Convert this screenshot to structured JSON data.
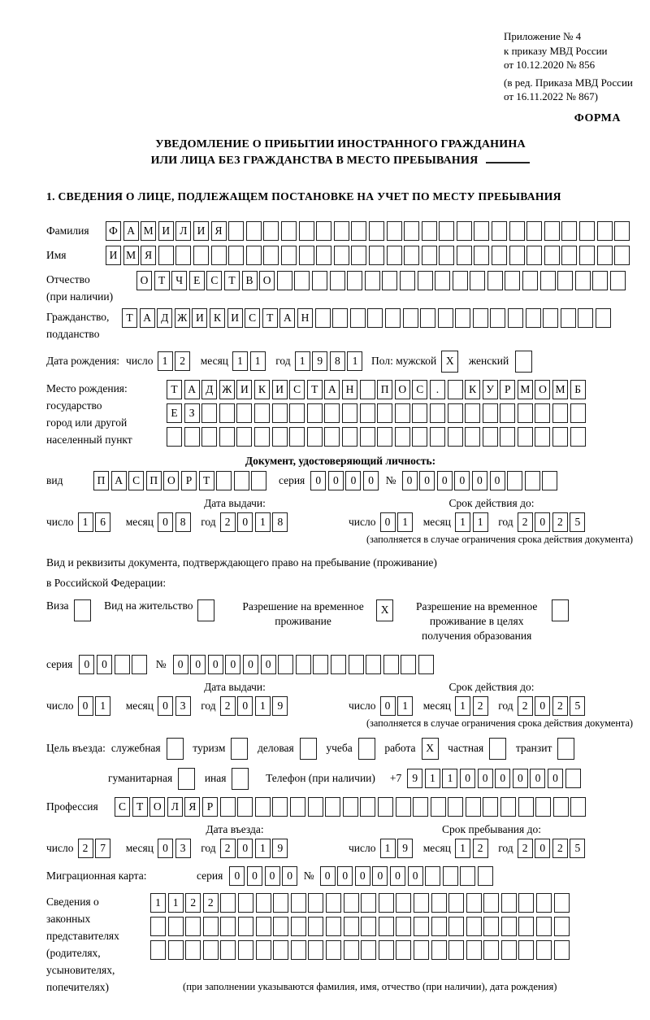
{
  "page": {
    "header_lines": [
      "Приложение № 4",
      "к приказу МВД России",
      "от 10.12.2020 № 856",
      "(в ред. Приказа МВД России",
      "от 16.11.2022 № 867)"
    ],
    "forma": "ФОРМА",
    "title_line1": "УВЕДОМЛЕНИЕ О ПРИБЫТИИ ИНОСТРАННОГО ГРАЖДАНИНА",
    "title_line2": "ИЛИ ЛИЦА БЕЗ ГРАЖДАНСТВА В МЕСТО ПРЕБЫВАНИЯ",
    "section1_heading": "1. СВЕДЕНИЯ О ЛИЦЕ, ПОДЛЕЖАЩЕМ ПОСТАНОВКЕ НА УЧЕТ ПО МЕСТУ ПРЕБЫВАНИЯ"
  },
  "words": {
    "day": "число",
    "month": "месяц",
    "year": "год",
    "series": "серия",
    "number": "№"
  },
  "surname": {
    "label": "Фамилия",
    "cells": {
      "value": "ФАМИЛИЯ",
      "length": 30
    }
  },
  "firstname": {
    "label": "Имя",
    "cells": {
      "value": "ИМЯ",
      "length": 30
    }
  },
  "patronymic": {
    "label": "Отчество",
    "sublabel": "(при наличии)",
    "cells": {
      "value": "ОТЧЕСТВО",
      "length": 28
    }
  },
  "citizenship": {
    "label": "Гражданство,",
    "sublabel": "подданство",
    "cells": {
      "value": "ТАДЖИКИСТАН",
      "length": 28
    }
  },
  "birth": {
    "label": "Дата рождения:",
    "day": "12",
    "month": "11",
    "year": "1981",
    "sex_label": "Пол: мужской",
    "male": {
      "value": "X",
      "length": 1
    },
    "female_label": "женский",
    "female": {
      "value": "",
      "length": 1
    }
  },
  "birthplace": {
    "label_lines": [
      "Место рождения:",
      "государство",
      "город или другой",
      "населенный пункт"
    ],
    "row1": {
      "value": "ТАДЖИКИСТАН ПОС. КУРМОМБ",
      "length": 24
    },
    "row2": {
      "value": "ЕЗ",
      "length": 24
    },
    "row3": {
      "value": "",
      "length": 24
    }
  },
  "identity_doc": {
    "heading": "Документ, удостоверяющий личность:",
    "vid_label": "вид",
    "vid": {
      "value": "ПАСПОРТ",
      "length": 10
    },
    "series": {
      "value": "0000",
      "length": 4
    },
    "number": {
      "value": "000000",
      "length": 9
    },
    "issue_heading": "Дата выдачи:",
    "valid_heading": "Срок действия до:",
    "issue_day": "16",
    "issue_month": "08",
    "issue_year": "2018",
    "valid_day": "01",
    "valid_month": "11",
    "valid_year": "2025",
    "note": "(заполняется в случае ограничения срока действия документа)"
  },
  "stay_doc": {
    "line1": "Вид и реквизиты документа, подтверждающего право на пребывание (проживание)",
    "line2": "в Российской Федерации:",
    "visa_label": "Виза",
    "visa": {
      "value": "",
      "length": 1
    },
    "residence_label": "Вид на жительство",
    "residence": {
      "value": "",
      "length": 1
    },
    "permit_label": "Разрешение на временное проживание",
    "permit": {
      "value": "X",
      "length": 1
    },
    "permit_edu_label": "Разрешение на временное проживание в целях получения образования",
    "permit_edu": {
      "value": "",
      "length": 1
    },
    "series": {
      "value": "00",
      "length": 4
    },
    "number": {
      "value": "000000",
      "length": 15
    },
    "issue_heading": "Дата выдачи:",
    "valid_heading": "Срок действия до:",
    "issue_day": "01",
    "issue_month": "03",
    "issue_year": "2019",
    "valid_day": "01",
    "valid_month": "12",
    "valid_year": "2025",
    "note": "(заполняется в случае ограничения срока действия документа)"
  },
  "purpose": {
    "label": "Цель въезда:",
    "options": [
      {
        "label": "служебная",
        "mark": {
          "value": "",
          "length": 1
        }
      },
      {
        "label": "туризм",
        "mark": {
          "value": "",
          "length": 1
        }
      },
      {
        "label": "деловая",
        "mark": {
          "value": "",
          "length": 1
        }
      },
      {
        "label": "учеба",
        "mark": {
          "value": "",
          "length": 1
        }
      },
      {
        "label": "работа",
        "mark": {
          "value": "X",
          "length": 1
        }
      },
      {
        "label": "частная",
        "mark": {
          "value": "",
          "length": 1
        }
      },
      {
        "label": "транзит",
        "mark": {
          "value": "",
          "length": 1
        }
      },
      {
        "label": "гуманитарная",
        "mark": {
          "value": "",
          "length": 1
        }
      },
      {
        "label": "иная",
        "mark": {
          "value": "",
          "length": 1
        }
      }
    ],
    "phone_label": "Телефон (при наличии)",
    "phone_prefix": "+7",
    "phone": {
      "value": "911000000",
      "length": 10
    }
  },
  "profession": {
    "label": "Профессия",
    "cells": {
      "value": "СТОЛЯР",
      "length": 27
    }
  },
  "entry": {
    "entry_heading": "Дата въезда:",
    "stay_heading": "Срок пребывания до:",
    "entry_day": "27",
    "entry_month": "03",
    "entry_year": "2019",
    "stay_day": "19",
    "stay_month": "12",
    "stay_year": "2025"
  },
  "migration": {
    "label": "Миграционная карта:",
    "series": {
      "value": "0000",
      "length": 4
    },
    "number": {
      "value": "000000",
      "length": 10
    }
  },
  "guardians": {
    "label_lines": [
      "Сведения о",
      "законных",
      "представителях",
      "(родителях,",
      "усыновителях,",
      "попечителях)"
    ],
    "row1": {
      "value": "1122",
      "length": 24
    },
    "row2": {
      "value": "",
      "length": 24
    },
    "row3": {
      "value": "",
      "length": 24
    },
    "note": "(при заполнении указываются фамилия, имя, отчество (при наличии), дата рождения)"
  }
}
